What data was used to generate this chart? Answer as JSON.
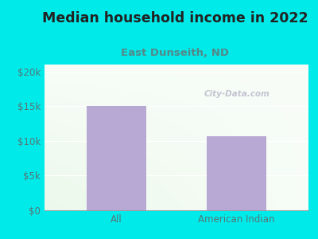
{
  "title": "Median household income in 2022",
  "subtitle": "East Dunseith, ND",
  "categories": [
    "All",
    "American Indian"
  ],
  "values": [
    15000,
    10700
  ],
  "bar_color": "#b8a8d4",
  "title_fontsize": 12.5,
  "subtitle_fontsize": 9.5,
  "title_color": "#222222",
  "subtitle_color": "#558888",
  "tick_label_color": "#557777",
  "ytick_labels": [
    "$0",
    "$5k",
    "$10k",
    "$15k",
    "$20k"
  ],
  "ytick_values": [
    0,
    5000,
    10000,
    15000,
    20000
  ],
  "ylim": [
    0,
    21000
  ],
  "background_outer": "#00eaea",
  "watermark": "City-Data.com",
  "grid_color": "#ffffff"
}
